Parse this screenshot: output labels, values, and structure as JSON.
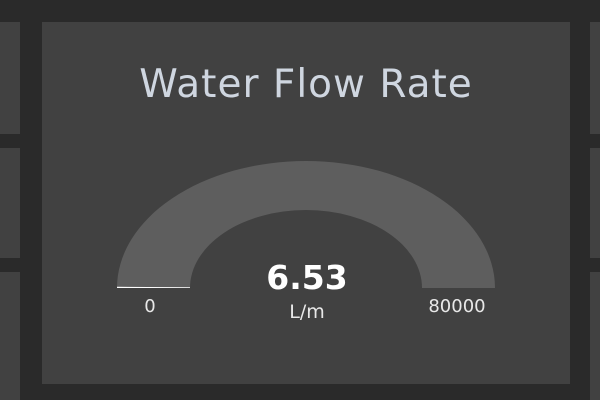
{
  "widget": {
    "title": "Water Flow Rate",
    "value": "6.53",
    "unit": "L/m",
    "min_label": "0",
    "max_label": "80000",
    "min": 0,
    "max": 80000,
    "current": 6.53
  },
  "colors": {
    "background": "#2a2a2a",
    "panel": "#414141",
    "gauge_track": "#5e5e5e",
    "gauge_fill": "#ffffff",
    "title_text": "#cfd6e0"
  }
}
